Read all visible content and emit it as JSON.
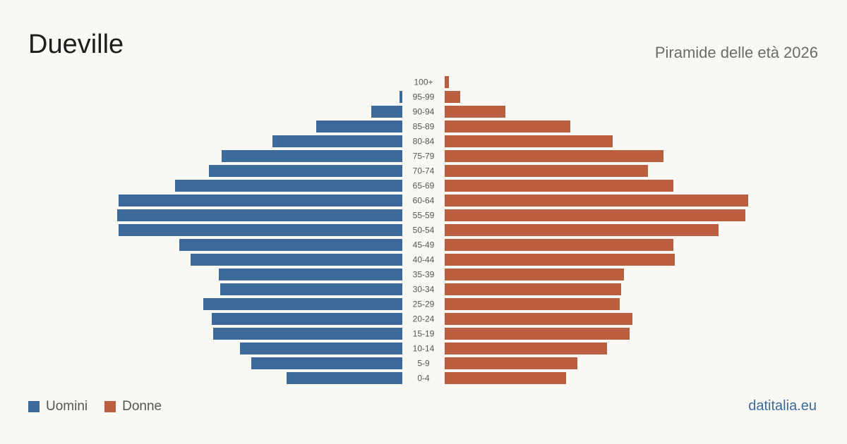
{
  "header": {
    "title": "Dueville",
    "subtitle": "Piramide delle età 2026"
  },
  "legend": {
    "men_label": "Uomini",
    "women_label": "Donne"
  },
  "source": "datitalia.eu",
  "colors": {
    "men": "#3c6a9b",
    "women": "#bb5e3f",
    "background": "#faf8f4"
  },
  "chart_data": {
    "type": "bar",
    "orientation": "horizontal-population-pyramid",
    "categories": [
      "100+",
      "95-99",
      "90-94",
      "85-89",
      "80-84",
      "75-79",
      "70-74",
      "65-69",
      "60-64",
      "55-59",
      "50-54",
      "45-49",
      "40-44",
      "35-39",
      "30-34",
      "25-29",
      "20-24",
      "15-19",
      "10-14",
      "5-9",
      "0-4"
    ],
    "series": [
      {
        "name": "Uomini",
        "side": "left",
        "values": [
          0,
          2,
          22,
          61,
          92,
          128,
          137,
          161,
          201,
          202,
          201,
          158,
          150,
          130,
          129,
          141,
          135,
          134,
          115,
          107,
          82
        ]
      },
      {
        "name": "Donne",
        "side": "right",
        "values": [
          3,
          11,
          43,
          89,
          119,
          155,
          144,
          162,
          215,
          213,
          194,
          162,
          163,
          127,
          125,
          124,
          133,
          131,
          115,
          94,
          86
        ]
      }
    ],
    "xlim": [
      0,
      215
    ],
    "grid": false,
    "legend_position": "bottom-left"
  }
}
